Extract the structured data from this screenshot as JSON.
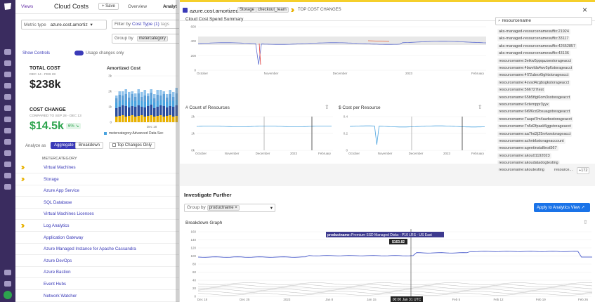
{
  "topbar": {
    "views": "Views",
    "title": "Cloud Costs",
    "save": "+ Save",
    "tabs": [
      "Overview",
      "Analyt"
    ]
  },
  "filters": {
    "metric_label": "Metric type",
    "metric_value": "azure.cost.amortiz",
    "filter_label": "Filter by",
    "filter_value": "Cost Type (1)",
    "filter_extra": "tags",
    "group_label": "Group by",
    "group_value": "metercategory"
  },
  "controls": {
    "show": "Show Controls",
    "usage": "Usage changes only"
  },
  "total": {
    "title": "TOTAL COST",
    "range": "DEC 14 - FEB 28",
    "value": "$238k"
  },
  "change": {
    "title": "COST CHANGE",
    "range": "COMPARED TO SEP 28 - DEC 13",
    "value": "$14.5k",
    "pct": "6%",
    "arrow": "↘"
  },
  "amortized": {
    "title": "Amortized Cost",
    "yticks": [
      "3k",
      "2k",
      "1k",
      "0"
    ],
    "ylabel": "Dollars",
    "xtick": "Dec 18",
    "legend": "metercategory:Advanced Data Sec"
  },
  "analyze": {
    "label": "Analyze as",
    "aggregate": "Aggregate",
    "breakdown": "Breakdown",
    "top": "Top Changes Only"
  },
  "table": {
    "header": "METERCATEGORY",
    "rows": [
      {
        "label": "Virtual Machines",
        "chev": true
      },
      {
        "label": "Storage",
        "chev": true
      },
      {
        "label": "Azure App Service",
        "chev": false
      },
      {
        "label": "SQL Database",
        "chev": false
      },
      {
        "label": "Virtual Machines Licenses",
        "chev": false
      },
      {
        "label": "Log Analytics",
        "chev": true
      },
      {
        "label": "Application Gateway",
        "chev": false
      },
      {
        "label": "Azure Managed Instance for Apache Cassandra",
        "chev": false
      },
      {
        "label": "Azure DevOps",
        "chev": false
      },
      {
        "label": "Azure Bastion",
        "chev": false
      },
      {
        "label": "Event Hubs",
        "chev": false
      },
      {
        "label": "Network Watcher",
        "chev": false
      }
    ]
  },
  "panel": {
    "title": "azure.cost.amortized",
    "for": "for",
    "pill1": "Storage",
    "pill2": "checkout_team",
    "badge": "TOP COST CHANGES",
    "close": "×",
    "spend_title": "Cloud Cost Spend Summary",
    "spend_yticks": [
      "600",
      "400",
      "200",
      "0"
    ],
    "spend_xticks": [
      "October",
      "November",
      "December",
      "2023",
      "February"
    ],
    "count_title": "# Count of Resources",
    "count_yticks": [
      "2k",
      "1k",
      "0k"
    ],
    "count_xticks": [
      "October",
      "November",
      "December",
      "2023",
      "February"
    ],
    "cpr_title": "$ Cost per Resource",
    "cpr_yticks": [
      "0.4",
      "0.2",
      "0"
    ],
    "cpr_xticks": [
      "October",
      "November",
      "December",
      "2023",
      "February"
    ],
    "investigate": "Investigate Further",
    "groupby": "Group by",
    "groupby_value": "productname",
    "apply": "Apply to Analytics View",
    "breakdown_title": "Breakdown Graph",
    "bd_yticks": [
      "160",
      "140",
      "120",
      "100",
      "80",
      "60",
      "40",
      "20",
      "0"
    ],
    "bd_xticks": [
      "Dec 18",
      "Dec 25",
      "2023",
      "Jan 8",
      "Jan 15",
      "Jan 22",
      "Feb 5",
      "Feb 12",
      "Feb 19",
      "Feb 26"
    ],
    "tooltip_key": "productname:",
    "tooltip_val": "Premium SSD Managed Disks - P10 LRS - US East",
    "tooltip_num": "$163.82",
    "cursor_time": "00:00 Jan 31 UTC",
    "ylabel": "Dollars"
  },
  "resources": {
    "search": "resourcename",
    "items": [
      "aks-managed-resourcenamesuffix:21924",
      "aks-managed-resourcenamesuffix:33117",
      "aks-managed-resourcenamesuffix:42652857",
      "aks-managed-resourcenamesuffix:43136",
      "resourcename:3eikw5ppqazsestorageacct",
      "resourcename:4bwvlda4wv5p6storageacct",
      "resourcename:4l72ubnx6ightstorageacct",
      "resourcename:4svsd4zgbsgkstorageacct",
      "resourcename:566727test",
      "resourcename:65b5tfgi6om3sstorageacct",
      "resourcename:6ctemppr3yyx",
      "resourcename:6t6f6cd2bsuagstorageacct",
      "resourcename:7aupd7m4awbsstorageacct",
      "resourcename:7n5d2fpask5ggstorageacct",
      "resourcename:aa7hd2j25nrkwstorageacct",
      "resourcename:achntrbstorageaccount",
      "resourcename:agentinstalltest567",
      "resourcename:akou01192023",
      "resourcename:akoudatadogtesting"
    ],
    "last": "resourcename:akoutesting",
    "more": "resource...",
    "count": "+172"
  },
  "colors": {
    "brand": "#632ca6",
    "line": "#5b6bd0",
    "accent_red": "#d33",
    "button": "#1a73e8"
  },
  "chart_data": [
    {
      "type": "bar",
      "title": "Amortized Cost",
      "ylabel": "Dollars",
      "ylim": [
        0,
        3000
      ]
    },
    {
      "type": "line",
      "title": "Cloud Cost Spend Summary",
      "ylim": [
        0,
        600
      ]
    },
    {
      "type": "line",
      "title": "# Count of Resources",
      "ylim": [
        0,
        2000
      ]
    },
    {
      "type": "line",
      "title": "$ Cost per Resource",
      "ylim": [
        0,
        0.4
      ]
    },
    {
      "type": "line",
      "title": "Breakdown Graph",
      "ylim": [
        0,
        160
      ],
      "ylabel": "Dollars"
    }
  ]
}
